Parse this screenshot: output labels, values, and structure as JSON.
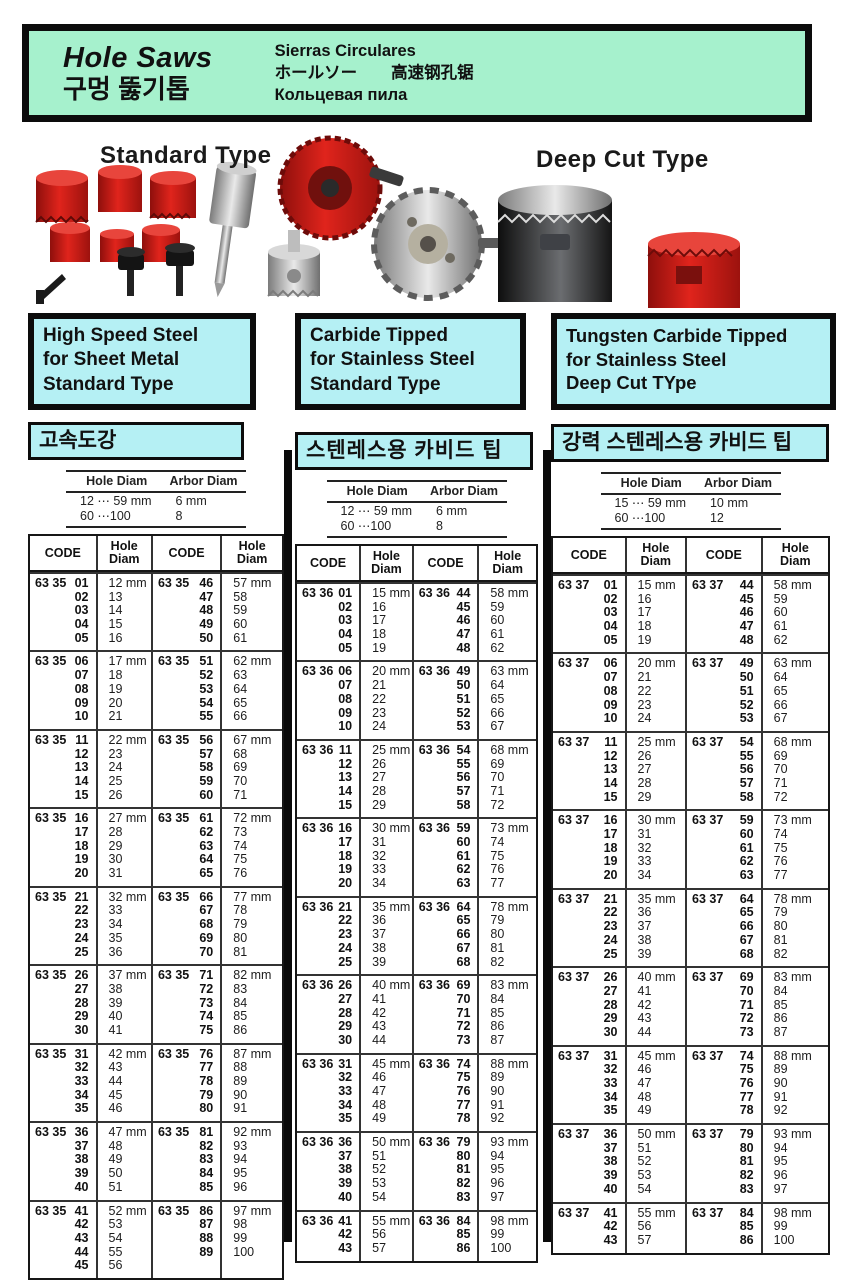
{
  "banner": {
    "title_en": "Hole Saws",
    "title_ko": "구멍 뚫기톱",
    "subtitle_es": "Sierras Circulares",
    "subtitle_ja": "ホールソー",
    "subtitle_zh": "高速钢孔锯",
    "subtitle_ru": "Кольцевая пила"
  },
  "product_labels": {
    "standard": "Standard Type",
    "deep_cut": "Deep Cut Type"
  },
  "sections": [
    {
      "title_lines": [
        "High Speed Steel",
        "for Sheet Metal",
        "Standard Type"
      ],
      "subtitle_ko": "고속도강",
      "spec": {
        "headers": [
          "Hole Diam",
          "Arbor Diam"
        ],
        "rows": [
          [
            "12 ⋯ 59 mm",
            "6 mm"
          ],
          [
            "60 ⋯100",
            "8"
          ]
        ]
      },
      "table": {
        "headers": [
          "CODE",
          "Hole\nDiam",
          "CODE",
          "Hole\nDiam"
        ],
        "code_prefix": "63 35",
        "blocks": [
          {
            "lc": [
              "01",
              "02",
              "03",
              "04",
              "05"
            ],
            "ld": [
              "12 mm",
              "13",
              "14",
              "15",
              "16"
            ],
            "rc": [
              "46",
              "47",
              "48",
              "49",
              "50"
            ],
            "rd": [
              "57 mm",
              "58",
              "59",
              "60",
              "61"
            ]
          },
          {
            "lc": [
              "06",
              "07",
              "08",
              "09",
              "10"
            ],
            "ld": [
              "17 mm",
              "18",
              "19",
              "20",
              "21"
            ],
            "rc": [
              "51",
              "52",
              "53",
              "54",
              "55"
            ],
            "rd": [
              "62 mm",
              "63",
              "64",
              "65",
              "66"
            ]
          },
          {
            "lc": [
              "11",
              "12",
              "13",
              "14",
              "15"
            ],
            "ld": [
              "22 mm",
              "23",
              "24",
              "25",
              "26"
            ],
            "rc": [
              "56",
              "57",
              "58",
              "59",
              "60"
            ],
            "rd": [
              "67 mm",
              "68",
              "69",
              "70",
              "71"
            ]
          },
          {
            "lc": [
              "16",
              "17",
              "18",
              "19",
              "20"
            ],
            "ld": [
              "27 mm",
              "28",
              "29",
              "30",
              "31"
            ],
            "rc": [
              "61",
              "62",
              "63",
              "64",
              "65"
            ],
            "rd": [
              "72 mm",
              "73",
              "74",
              "75",
              "76"
            ]
          },
          {
            "lc": [
              "21",
              "22",
              "23",
              "24",
              "25"
            ],
            "ld": [
              "32 mm",
              "33",
              "34",
              "35",
              "36"
            ],
            "rc": [
              "66",
              "67",
              "68",
              "69",
              "70"
            ],
            "rd": [
              "77 mm",
              "78",
              "79",
              "80",
              "81"
            ]
          },
          {
            "lc": [
              "26",
              "27",
              "28",
              "29",
              "30"
            ],
            "ld": [
              "37 mm",
              "38",
              "39",
              "40",
              "41"
            ],
            "rc": [
              "71",
              "72",
              "73",
              "74",
              "75"
            ],
            "rd": [
              "82 mm",
              "83",
              "84",
              "85",
              "86"
            ]
          },
          {
            "lc": [
              "31",
              "32",
              "33",
              "34",
              "35"
            ],
            "ld": [
              "42 mm",
              "43",
              "44",
              "45",
              "46"
            ],
            "rc": [
              "76",
              "77",
              "78",
              "79",
              "80"
            ],
            "rd": [
              "87 mm",
              "88",
              "89",
              "90",
              "91"
            ]
          },
          {
            "lc": [
              "36",
              "37",
              "38",
              "39",
              "40"
            ],
            "ld": [
              "47 mm",
              "48",
              "49",
              "50",
              "51"
            ],
            "rc": [
              "81",
              "82",
              "83",
              "84",
              "85"
            ],
            "rd": [
              "92 mm",
              "93",
              "94",
              "95",
              "96"
            ]
          },
          {
            "lc": [
              "41",
              "42",
              "43",
              "44",
              "45"
            ],
            "ld": [
              "52 mm",
              "53",
              "54",
              "55",
              "56"
            ],
            "rc": [
              "86",
              "87",
              "88",
              "89"
            ],
            "rd": [
              "97 mm",
              "98",
              "99",
              "100"
            ]
          }
        ]
      }
    },
    {
      "title_lines": [
        "Carbide Tipped",
        "for Stainless Steel",
        "Standard Type"
      ],
      "subtitle_ko": "스텐레스용 카비드 팁",
      "spec": {
        "headers": [
          "Hole Diam",
          "Arbor Diam"
        ],
        "rows": [
          [
            "12 ⋯ 59 mm",
            "6 mm"
          ],
          [
            "60 ⋯100",
            "8"
          ]
        ]
      },
      "table": {
        "headers": [
          "CODE",
          "Hole\nDiam",
          "CODE",
          "Hole\nDiam"
        ],
        "code_prefix": "63 36",
        "blocks": [
          {
            "lc": [
              "01",
              "02",
              "03",
              "04",
              "05"
            ],
            "ld": [
              "15 mm",
              "16",
              "17",
              "18",
              "19"
            ],
            "rc": [
              "44",
              "45",
              "46",
              "47",
              "48"
            ],
            "rd": [
              "58 mm",
              "59",
              "60",
              "61",
              "62"
            ]
          },
          {
            "lc": [
              "06",
              "07",
              "08",
              "09",
              "10"
            ],
            "ld": [
              "20 mm",
              "21",
              "22",
              "23",
              "24"
            ],
            "rc": [
              "49",
              "50",
              "51",
              "52",
              "53"
            ],
            "rd": [
              "63 mm",
              "64",
              "65",
              "66",
              "67"
            ]
          },
          {
            "lc": [
              "11",
              "12",
              "13",
              "14",
              "15"
            ],
            "ld": [
              "25 mm",
              "26",
              "27",
              "28",
              "29"
            ],
            "rc": [
              "54",
              "55",
              "56",
              "57",
              "58"
            ],
            "rd": [
              "68 mm",
              "69",
              "70",
              "71",
              "72"
            ]
          },
          {
            "lc": [
              "16",
              "17",
              "18",
              "19",
              "20"
            ],
            "ld": [
              "30 mm",
              "31",
              "32",
              "33",
              "34"
            ],
            "rc": [
              "59",
              "60",
              "61",
              "62",
              "63"
            ],
            "rd": [
              "73 mm",
              "74",
              "75",
              "76",
              "77"
            ]
          },
          {
            "lc": [
              "21",
              "22",
              "23",
              "24",
              "25"
            ],
            "ld": [
              "35 mm",
              "36",
              "37",
              "38",
              "39"
            ],
            "rc": [
              "64",
              "65",
              "66",
              "67",
              "68"
            ],
            "rd": [
              "78 mm",
              "79",
              "80",
              "81",
              "82"
            ]
          },
          {
            "lc": [
              "26",
              "27",
              "28",
              "29",
              "30"
            ],
            "ld": [
              "40 mm",
              "41",
              "42",
              "43",
              "44"
            ],
            "rc": [
              "69",
              "70",
              "71",
              "72",
              "73"
            ],
            "rd": [
              "83 mm",
              "84",
              "85",
              "86",
              "87"
            ]
          },
          {
            "lc": [
              "31",
              "32",
              "33",
              "34",
              "35"
            ],
            "ld": [
              "45 mm",
              "46",
              "47",
              "48",
              "49"
            ],
            "rc": [
              "74",
              "75",
              "76",
              "77",
              "78"
            ],
            "rd": [
              "88 mm",
              "89",
              "90",
              "91",
              "92"
            ]
          },
          {
            "lc": [
              "36",
              "37",
              "38",
              "39",
              "40"
            ],
            "ld": [
              "50 mm",
              "51",
              "52",
              "53",
              "54"
            ],
            "rc": [
              "79",
              "80",
              "81",
              "82",
              "83"
            ],
            "rd": [
              "93 mm",
              "94",
              "95",
              "96",
              "97"
            ]
          },
          {
            "lc": [
              "41",
              "42",
              "43"
            ],
            "ld": [
              "55 mm",
              "56",
              "57"
            ],
            "rc": [
              "84",
              "85",
              "86"
            ],
            "rd": [
              "98 mm",
              "99",
              "100"
            ]
          }
        ]
      }
    },
    {
      "title_lines": [
        "Tungsten Carbide Tipped",
        "for Stainless Steel",
        "Deep Cut TYpe"
      ],
      "subtitle_ko": "강력 스텐레스용 카비드 팁",
      "spec": {
        "headers": [
          "Hole Diam",
          "Arbor Diam"
        ],
        "rows": [
          [
            "15 ⋯ 59 mm",
            "10 mm"
          ],
          [
            "60 ⋯100",
            "12"
          ]
        ]
      },
      "table": {
        "headers": [
          "CODE",
          "Hole\nDiam",
          "CODE",
          "Hole\nDiam"
        ],
        "code_prefix": "63 37",
        "blocks": [
          {
            "lc": [
              "01",
              "02",
              "03",
              "04",
              "05"
            ],
            "ld": [
              "15 mm",
              "16",
              "17",
              "18",
              "19"
            ],
            "rc": [
              "44",
              "45",
              "46",
              "47",
              "48"
            ],
            "rd": [
              "58 mm",
              "59",
              "60",
              "61",
              "62"
            ]
          },
          {
            "lc": [
              "06",
              "07",
              "08",
              "09",
              "10"
            ],
            "ld": [
              "20 mm",
              "21",
              "22",
              "23",
              "24"
            ],
            "rc": [
              "49",
              "50",
              "51",
              "52",
              "53"
            ],
            "rd": [
              "63 mm",
              "64",
              "65",
              "66",
              "67"
            ]
          },
          {
            "lc": [
              "11",
              "12",
              "13",
              "14",
              "15"
            ],
            "ld": [
              "25 mm",
              "26",
              "27",
              "28",
              "29"
            ],
            "rc": [
              "54",
              "55",
              "56",
              "57",
              "58"
            ],
            "rd": [
              "68 mm",
              "69",
              "70",
              "71",
              "72"
            ]
          },
          {
            "lc": [
              "16",
              "17",
              "18",
              "19",
              "20"
            ],
            "ld": [
              "30 mm",
              "31",
              "32",
              "33",
              "34"
            ],
            "rc": [
              "59",
              "60",
              "61",
              "62",
              "63"
            ],
            "rd": [
              "73 mm",
              "74",
              "75",
              "76",
              "77"
            ]
          },
          {
            "lc": [
              "21",
              "22",
              "23",
              "24",
              "25"
            ],
            "ld": [
              "35 mm",
              "36",
              "37",
              "38",
              "39"
            ],
            "rc": [
              "64",
              "65",
              "66",
              "67",
              "68"
            ],
            "rd": [
              "78 mm",
              "79",
              "80",
              "81",
              "82"
            ]
          },
          {
            "lc": [
              "26",
              "27",
              "28",
              "29",
              "30"
            ],
            "ld": [
              "40 mm",
              "41",
              "42",
              "43",
              "44"
            ],
            "rc": [
              "69",
              "70",
              "71",
              "72",
              "73"
            ],
            "rd": [
              "83 mm",
              "84",
              "85",
              "86",
              "87"
            ]
          },
          {
            "lc": [
              "31",
              "32",
              "33",
              "34",
              "35"
            ],
            "ld": [
              "45 mm",
              "46",
              "47",
              "48",
              "49"
            ],
            "rc": [
              "74",
              "75",
              "76",
              "77",
              "78"
            ],
            "rd": [
              "88 mm",
              "89",
              "90",
              "91",
              "92"
            ]
          },
          {
            "lc": [
              "36",
              "37",
              "38",
              "39",
              "40"
            ],
            "ld": [
              "50 mm",
              "51",
              "52",
              "53",
              "54"
            ],
            "rc": [
              "79",
              "80",
              "81",
              "82",
              "83"
            ],
            "rd": [
              "93 mm",
              "94",
              "95",
              "96",
              "97"
            ]
          },
          {
            "lc": [
              "41",
              "42",
              "43"
            ],
            "ld": [
              "55 mm",
              "56",
              "57"
            ],
            "rc": [
              "84",
              "85",
              "86"
            ],
            "rd": [
              "98 mm",
              "99",
              "100"
            ]
          }
        ]
      }
    }
  ],
  "colors": {
    "banner_bg": "#a6f1cd",
    "section_bg": "#b5f0f4",
    "saw_red": "#cc1a15",
    "ink": "#0c0c0c"
  }
}
